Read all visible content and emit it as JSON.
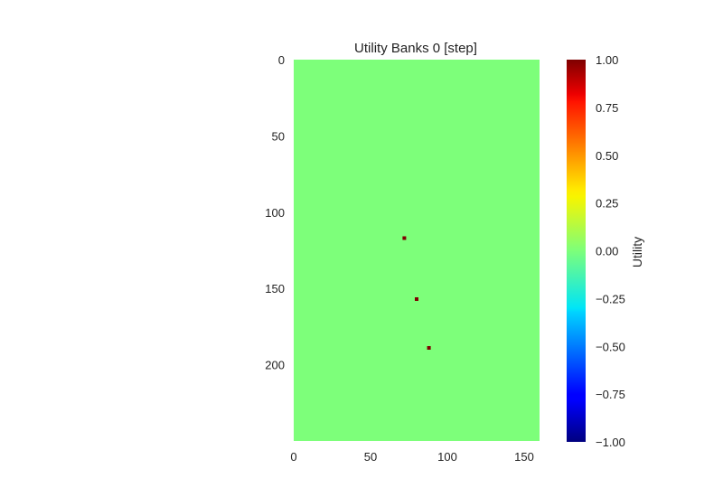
{
  "chart_data": {
    "type": "heatmap",
    "title": "Utility Banks 0 [step]",
    "xlabel": "",
    "ylabel": "",
    "xlim": [
      0,
      160
    ],
    "ylim": [
      0,
      250
    ],
    "y_inverted": true,
    "x_ticks": [
      0,
      50,
      100,
      150
    ],
    "y_ticks": [
      0,
      50,
      100,
      150,
      200
    ],
    "background_value": 0.0,
    "cells": [
      {
        "x": 72,
        "y": 117,
        "value": 1.0
      },
      {
        "x": 80,
        "y": 157,
        "value": 1.0
      },
      {
        "x": 88,
        "y": 189,
        "value": 1.0
      }
    ],
    "colorbar": {
      "label": "Utility",
      "colormap": "jet",
      "min": -1.0,
      "max": 1.0,
      "ticks": [
        "1.00",
        "0.75",
        "0.50",
        "0.25",
        "0.00",
        "−0.25",
        "−0.50",
        "−0.75",
        "−1.00"
      ],
      "tick_values": [
        1.0,
        0.75,
        0.5,
        0.25,
        0.0,
        -0.25,
        -0.5,
        -0.75,
        -1.0
      ]
    },
    "grid": false
  }
}
